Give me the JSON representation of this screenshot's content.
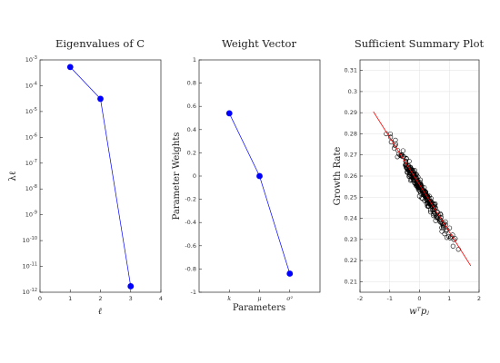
{
  "chart_data": [
    {
      "type": "line",
      "title": "Eigenvalues of C",
      "xlabel": "ℓ",
      "ylabel": "λℓ",
      "yscale": "log",
      "xlim": [
        0,
        4
      ],
      "ylim": [
        1e-12,
        0.001
      ],
      "xticks": [
        "0",
        "1",
        "2",
        "3",
        "4"
      ],
      "yticks": [
        "10-12",
        "10-11",
        "10-10",
        "10-9",
        "10-8",
        "10-7",
        "10-6",
        "10-5",
        "10-4",
        "10-3"
      ],
      "x": [
        1,
        2,
        3
      ],
      "y": [
        0.00053,
        3.1e-05,
        1.7e-12
      ],
      "line_color": "#0000ff",
      "marker_color": "#0000ff",
      "grid": false
    },
    {
      "type": "line",
      "title": "Weight Vector",
      "xlabel": "Parameters",
      "ylabel": "Parameter Weights",
      "xlim": [
        0,
        4
      ],
      "ylim": [
        -1,
        1
      ],
      "xticks": [
        "k",
        "μ",
        "σ²"
      ],
      "yticks": [
        "-1",
        "-0.8",
        "-0.6",
        "-0.4",
        "-0.2",
        "0",
        "0.2",
        "0.4",
        "0.6",
        "0.8",
        "1"
      ],
      "x": [
        1,
        2,
        3
      ],
      "y": [
        0.54,
        0.0,
        -0.84
      ],
      "line_color": "#0000ff",
      "marker_color": "#0000ff",
      "grid": false
    },
    {
      "type": "scatter",
      "title": "Sufficient Summary Plot",
      "xlabel": "wᵀpⱼ",
      "ylabel": "Growth Rate",
      "xlim": [
        -2,
        2
      ],
      "ylim": [
        0.205,
        0.315
      ],
      "xticks": [
        "-2",
        "-1",
        "0",
        "1",
        "2"
      ],
      "yticks": [
        "0.21",
        "0.22",
        "0.23",
        "0.24",
        "0.25",
        "0.26",
        "0.27",
        "0.28",
        "0.29",
        "0.3",
        "0.31"
      ],
      "fit_line": {
        "x": [
          -1.55,
          1.72
        ],
        "y": [
          0.2905,
          0.2175
        ],
        "color": "#ff0000"
      },
      "cloud": {
        "x_range": [
          -1.3,
          1.45
        ],
        "slope": -0.0228,
        "intercept": 0.2553,
        "spread": 0.0032,
        "count": 260
      },
      "marker": "open-circle",
      "marker_color": "#000000",
      "grid": true
    }
  ]
}
